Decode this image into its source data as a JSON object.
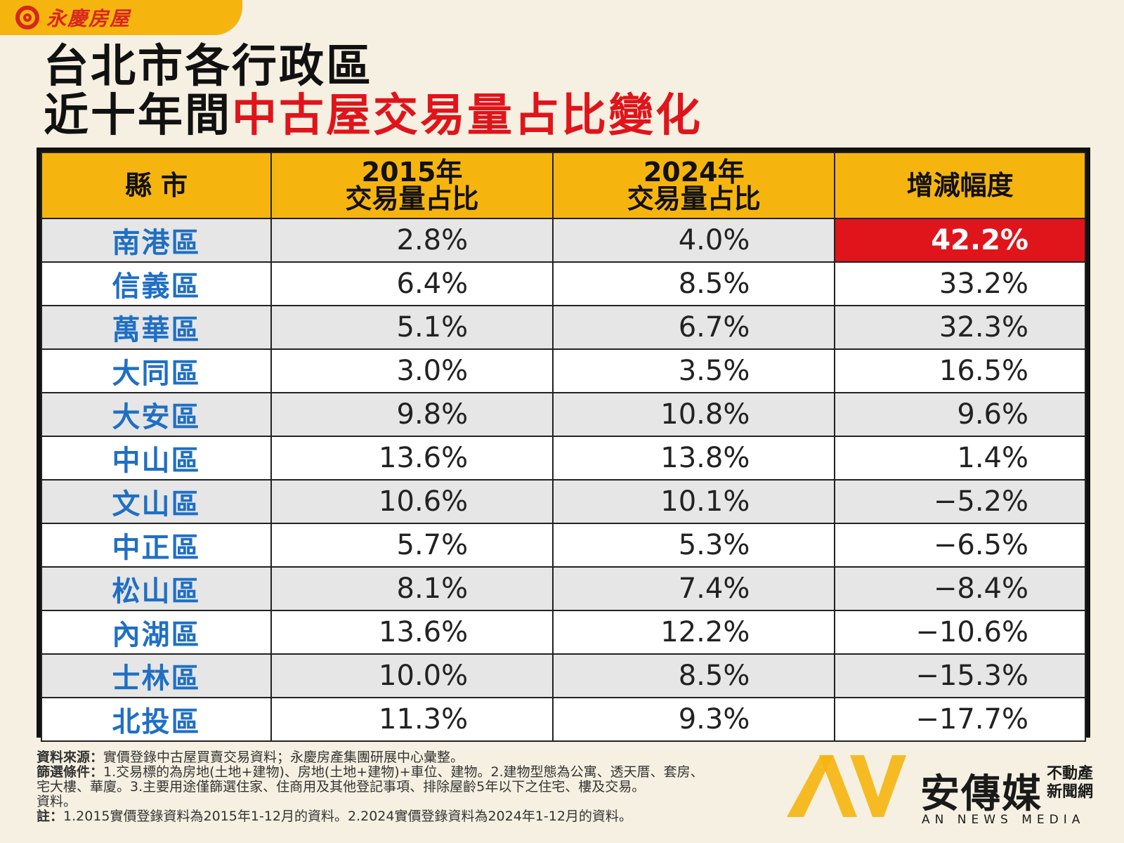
{
  "brand": {
    "name": "永慶房屋"
  },
  "title": {
    "line1": "台北市各行政區",
    "line2_black": "近十年間",
    "line2_red": "中古屋交易量占比變化"
  },
  "chart_data": {
    "type": "table",
    "columns": [
      "縣 市",
      "2015年 交易量占比",
      "2024年 交易量占比",
      "增減幅度"
    ],
    "header": {
      "col1": "縣 市",
      "col2_line1": "2015年",
      "col2_line2": "交易量占比",
      "col3_line1": "2024年",
      "col3_line2": "交易量占比",
      "col4": "增減幅度"
    },
    "rows": [
      {
        "district": "南港區",
        "y2015": "2.8%",
        "y2024": "4.0%",
        "change": "42.2%"
      },
      {
        "district": "信義區",
        "y2015": "6.4%",
        "y2024": "8.5%",
        "change": "33.2%"
      },
      {
        "district": "萬華區",
        "y2015": "5.1%",
        "y2024": "6.7%",
        "change": "32.3%"
      },
      {
        "district": "大同區",
        "y2015": "3.0%",
        "y2024": "3.5%",
        "change": "16.5%"
      },
      {
        "district": "大安區",
        "y2015": "9.8%",
        "y2024": "10.8%",
        "change": "9.6%"
      },
      {
        "district": "中山區",
        "y2015": "13.6%",
        "y2024": "13.8%",
        "change": "1.4%"
      },
      {
        "district": "文山區",
        "y2015": "10.6%",
        "y2024": "10.1%",
        "change": "−5.2%"
      },
      {
        "district": "中正區",
        "y2015": "5.7%",
        "y2024": "5.3%",
        "change": "−6.5%"
      },
      {
        "district": "松山區",
        "y2015": "8.1%",
        "y2024": "7.4%",
        "change": "−8.4%"
      },
      {
        "district": "內湖區",
        "y2015": "13.6%",
        "y2024": "12.2%",
        "change": "−10.6%"
      },
      {
        "district": "士林區",
        "y2015": "10.0%",
        "y2024": "8.5%",
        "change": "−15.3%"
      },
      {
        "district": "北投區",
        "y2015": "11.3%",
        "y2024": "9.3%",
        "change": "−17.7%"
      }
    ],
    "highlight_color": "#e0141b"
  },
  "notes": {
    "source_label": "資料來源：",
    "source_text": "實價登錄中古屋買賣交易資料；永慶房產集團研展中心彙整。",
    "filter_label": "篩選條件：",
    "filter_text": "1.交易標的為房地(土地+建物)、房地(土地+建物)+車位、建物。2.建物型態為公寓、透天厝、套房、",
    "filter_text2": "宅大樓、華廈。3.主要用途僅篩選住家、住商用及其他登記事項、排除屋齡5年以下之住宅、樓及交易。",
    "filter_text3": "資料。",
    "note_label": "註：",
    "note_text": "1.2015實價登錄資料為2015年1-12月的資料。2.2024實價登錄資料為2024年1-12月的資料。"
  },
  "watermark": {
    "name": "安傳媒",
    "tag_line1": "不動產",
    "tag_line2": "新聞網",
    "sub": "AN NEWS MEDIA"
  },
  "colors": {
    "header_bg": "#f6b50e",
    "district_text": "#1f6fc4",
    "title_red": "#e0141b",
    "page_bg": "#f5f0e1"
  }
}
